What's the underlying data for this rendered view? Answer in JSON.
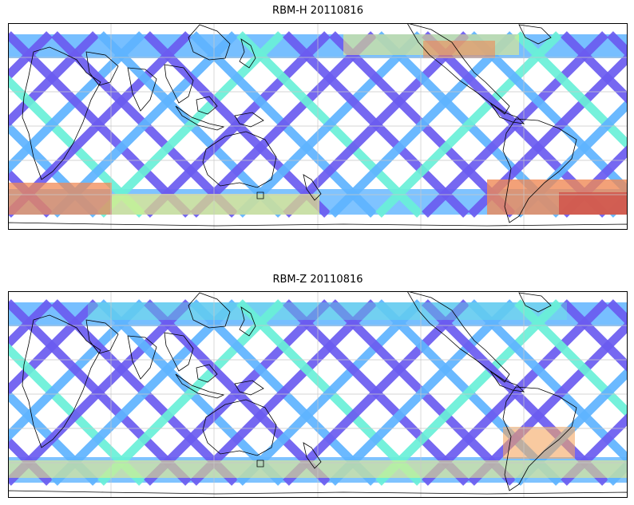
{
  "figure": {
    "panels": [
      {
        "id": "rbm-h",
        "title": "RBM-H 20110816",
        "colors": {
          "low": "#6b5cf0",
          "mid": "#5fb4ff",
          "high1": "#6af0d8",
          "high2": "#f3f07a",
          "high3": "#f08a56",
          "peak": "#d0584e"
        }
      },
      {
        "id": "rbm-z",
        "title": "RBM-Z 20110816",
        "colors": {
          "low": "#6b5cf0",
          "mid": "#5fb4ff",
          "high1": "#6af0d8",
          "high2": "#f3f07a",
          "high3": "#f5a660",
          "peak": "#f08a56"
        }
      }
    ],
    "map": {
      "projection": "equirectangular",
      "central_longitude": "Pacific-centred",
      "grid": true,
      "coastlines": true,
      "track_pattern": "crossing satellite swaths"
    }
  }
}
